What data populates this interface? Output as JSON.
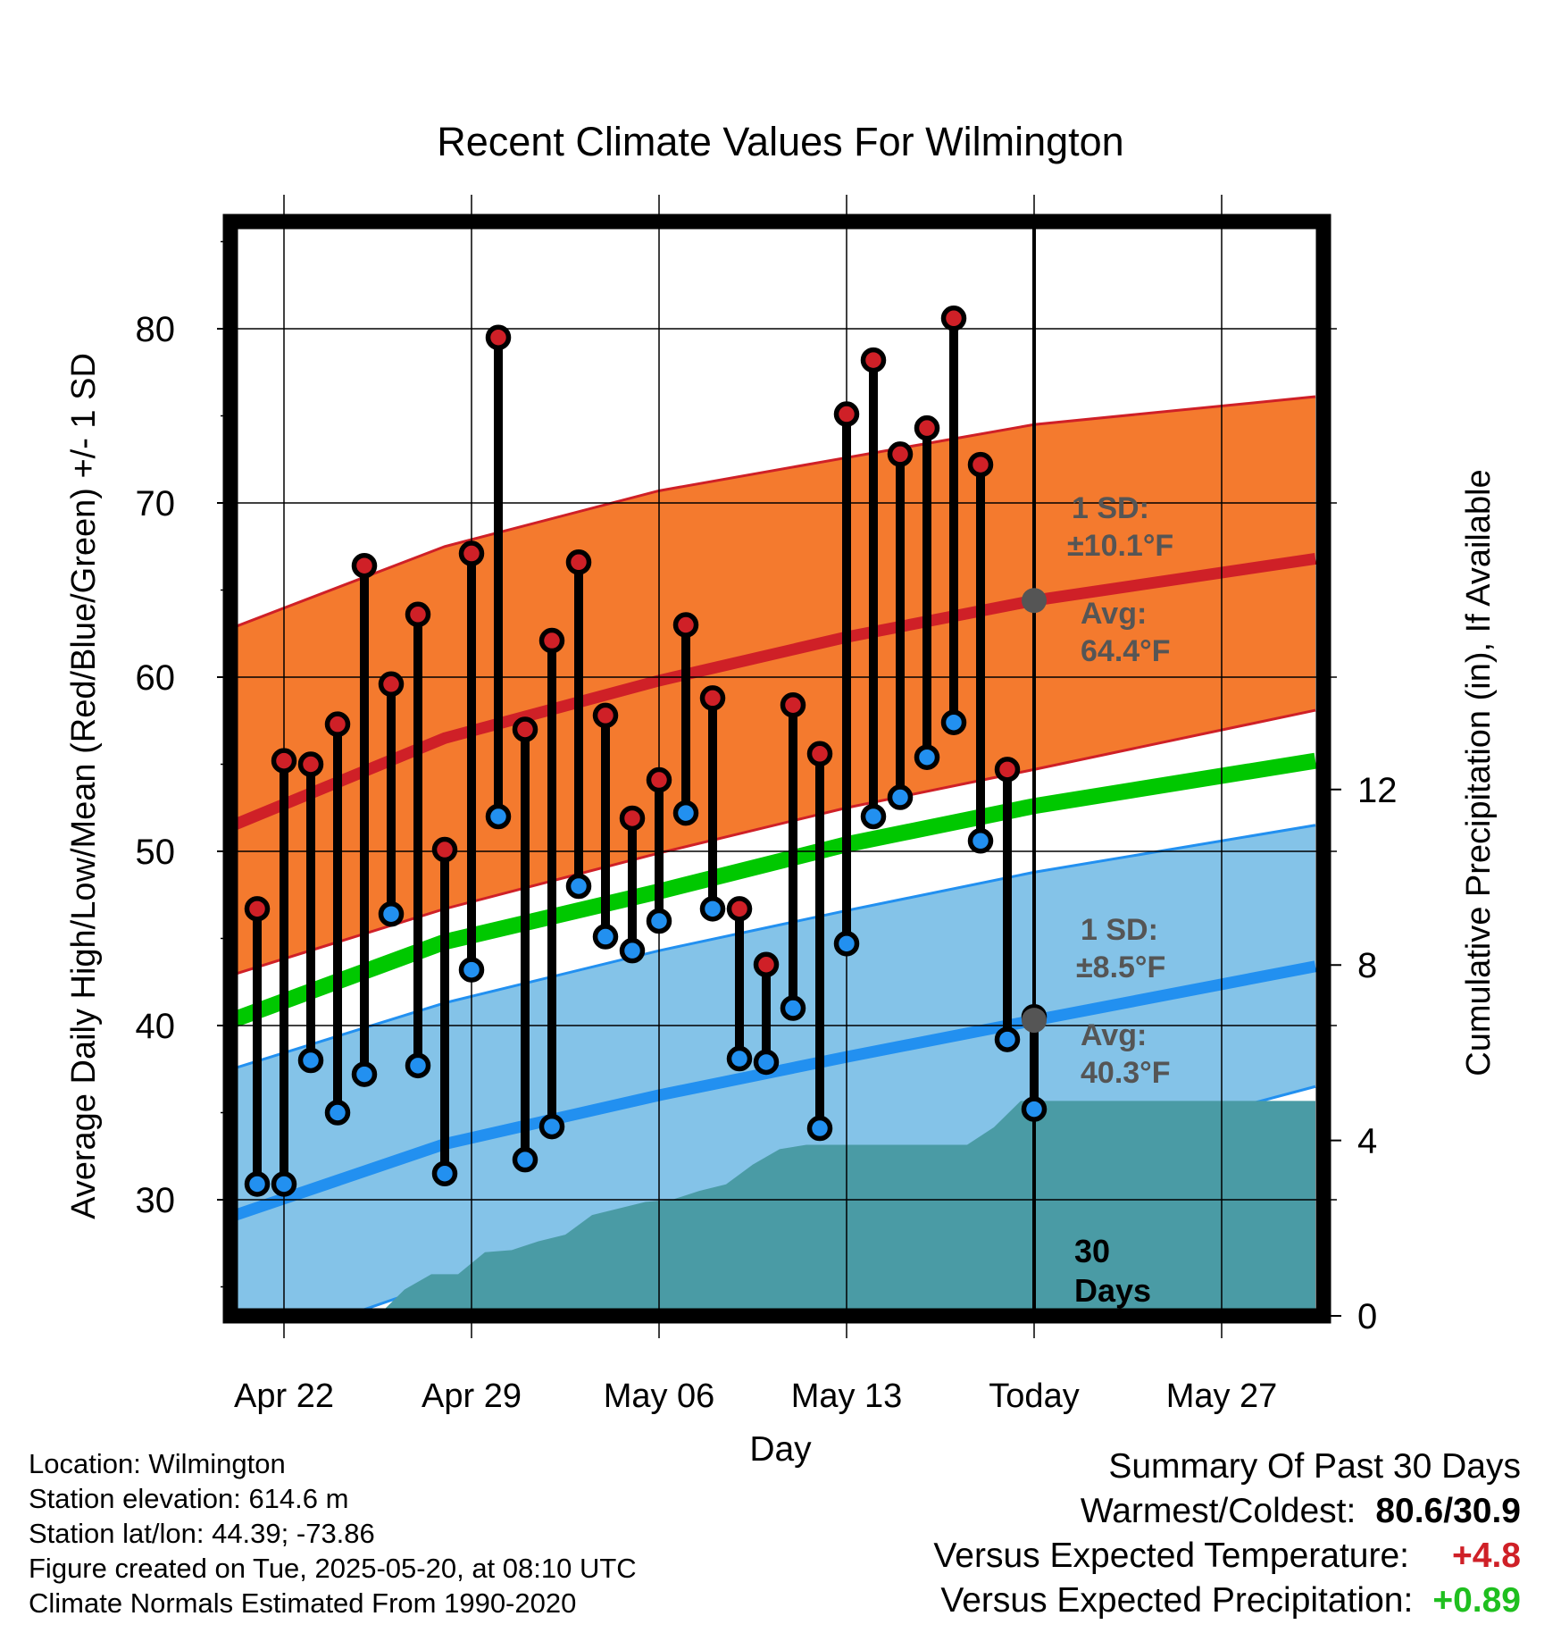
{
  "chart_data": {
    "type": "line",
    "title": "Recent Climate Values For Wilmington",
    "xlabel": "Day",
    "ylabel": "Average Daily High/Low/Mean (Red/Blue/Green) +/- 1 SD",
    "y2label": "Cumulative Precipitation (in), If Available",
    "xlim": [
      -2,
      39.5
    ],
    "ylim": [
      23,
      86
    ],
    "y2lim": [
      0,
      18.7
    ],
    "xticks": [
      {
        "x": 1,
        "label": "Apr 22"
      },
      {
        "x": 8,
        "label": "Apr 29"
      },
      {
        "x": 15,
        "label": "May 06"
      },
      {
        "x": 22,
        "label": "May 13"
      },
      {
        "x": 29,
        "label": "Today"
      },
      {
        "x": 36,
        "label": "May 27"
      }
    ],
    "yticks": [
      30,
      40,
      50,
      60,
      70,
      80
    ],
    "y2ticks": [
      0,
      4,
      8,
      12
    ],
    "today_x": 29,
    "today_label": [
      "30",
      "Days"
    ],
    "colors": {
      "high_band": "#f47a2e",
      "high_line": "#cf2027",
      "low_band": "#84c3e8",
      "low_line": "#2290f0",
      "mean_line": "#00c800",
      "precip": "#4a9ba5",
      "high_dot": "#cf2027",
      "low_dot": "#2290f0",
      "avg_dot": "#555555",
      "annotation": "#555555"
    },
    "normals": {
      "x": [
        -2,
        7,
        15,
        22,
        29,
        39.5
      ],
      "high_avg": [
        50.8,
        56.5,
        59.8,
        62.3,
        64.4,
        66.8
      ],
      "high_upper": [
        62.2,
        67.5,
        70.7,
        72.6,
        74.5,
        76.1
      ],
      "high_lower": [
        42.4,
        46.7,
        49.9,
        52.5,
        54.7,
        58.1
      ],
      "mean": [
        39.7,
        44.8,
        47.7,
        50.4,
        52.6,
        55.2
      ],
      "low_avg": [
        28.5,
        33.2,
        36.0,
        38.2,
        40.3,
        43.4
      ],
      "low_upper": [
        37.0,
        41.3,
        44.3,
        46.6,
        48.8,
        51.5
      ],
      "low_lower": [
        20.5,
        25.3,
        27.7,
        30.3,
        32.2,
        36.5
      ]
    },
    "series": [
      {
        "name": "High",
        "x": [
          0,
          1,
          2,
          3,
          4,
          5,
          6,
          7,
          8,
          9,
          10,
          11,
          12,
          13,
          14,
          15,
          16,
          17,
          18,
          19,
          20,
          21,
          22,
          23,
          24,
          25,
          26,
          27,
          28
        ],
        "values": [
          46.7,
          55.2,
          55.0,
          57.3,
          66.4,
          59.6,
          63.6,
          50.1,
          67.1,
          79.5,
          57.0,
          62.1,
          66.6,
          57.8,
          51.9,
          54.1,
          63.0,
          58.8,
          46.7,
          43.5,
          58.4,
          55.6,
          75.1,
          78.2,
          72.8,
          74.3,
          80.6,
          72.2,
          54.7
        ]
      },
      {
        "name": "Low",
        "x": [
          0,
          1,
          2,
          3,
          4,
          5,
          6,
          7,
          8,
          9,
          10,
          11,
          12,
          13,
          14,
          15,
          16,
          17,
          18,
          19,
          20,
          21,
          22,
          23,
          24,
          25,
          26,
          27,
          28,
          29
        ],
        "values": [
          30.9,
          30.9,
          38.0,
          35.0,
          37.2,
          46.4,
          37.7,
          31.5,
          43.2,
          52.0,
          32.3,
          34.2,
          48.0,
          45.1,
          44.3,
          46.0,
          52.2,
          46.7,
          38.1,
          37.9,
          41.0,
          34.1,
          44.7,
          52.0,
          53.1,
          55.4,
          57.4,
          50.6,
          39.2,
          35.2
        ]
      },
      {
        "name": "High (today)",
        "x": [
          29
        ],
        "values": [
          40.5
        ]
      }
    ],
    "precip": {
      "x": [
        4.5,
        5.5,
        6.5,
        7.5,
        8.5,
        9.5,
        10.5,
        11.5,
        12.5,
        13.5,
        14.5,
        15.5,
        16.5,
        17.5,
        18.5,
        19.5,
        20.5,
        26.5,
        27.5,
        28.5,
        39.5
      ],
      "values": [
        0,
        0.6,
        0.95,
        0.95,
        1.45,
        1.5,
        1.7,
        1.85,
        2.3,
        2.45,
        2.6,
        2.65,
        2.85,
        3.0,
        3.45,
        3.8,
        3.9,
        3.9,
        4.3,
        4.9,
        4.9
      ]
    },
    "annotations": {
      "high_sd": [
        "1 SD:",
        "±10.1°F"
      ],
      "high_avg": [
        "Avg:",
        "64.4°F"
      ],
      "low_sd": [
        "1 SD:",
        "±8.5°F"
      ],
      "low_avg": [
        "Avg:",
        "40.3°F"
      ],
      "high_avg_value": 64.4,
      "low_avg_value": 40.3
    },
    "grid": true,
    "legend": "none"
  },
  "footer": {
    "location": "Location: Wilmington",
    "elevation": "Station elevation: 614.6 m",
    "latlon": "Station lat/lon: 44.39; -73.86",
    "created": "Figure created on Tue, 2025-05-20, at 08:10 UTC",
    "normals": "Climate Normals Estimated From 1990-2020"
  },
  "summary": {
    "title": "Summary Of Past 30 Days",
    "warm_label": "Warmest/Coldest:",
    "warm_value": "80.6/30.9",
    "temp_label": "Versus Expected Temperature:",
    "temp_value": "+4.8",
    "temp_color": "#cf2027",
    "precip_label": "Versus Expected Precipitation:",
    "precip_value": "+0.89",
    "precip_color": "#1fbf1f"
  }
}
